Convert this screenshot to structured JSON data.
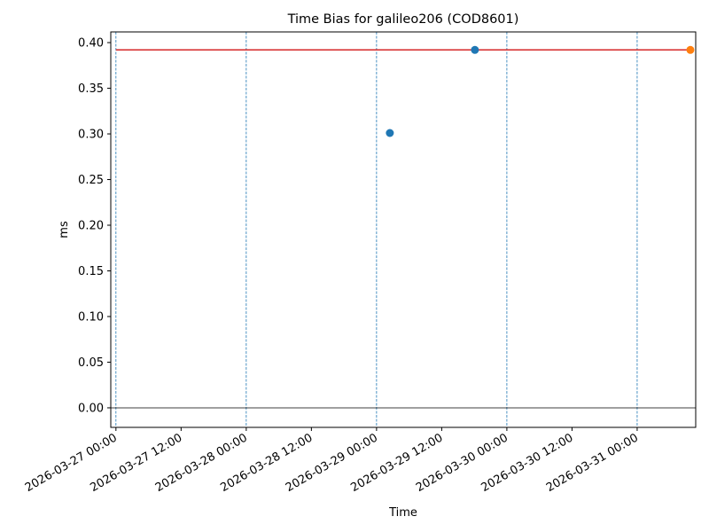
{
  "chart_data": {
    "type": "scatter",
    "title": "Time Bias for galileo206 (COD8601)",
    "x_label": "Time",
    "y_label": "ms",
    "xlim": [
      "2026-03-26 23:03",
      "2026-03-31 10:47"
    ],
    "xticks": [
      "2026-03-27 00:00",
      "2026-03-27 12:00",
      "2026-03-28 00:00",
      "2026-03-28 12:00",
      "2026-03-29 00:00",
      "2026-03-29 12:00",
      "2026-03-30 00:00",
      "2026-03-30 12:00",
      "2026-03-31 00:00"
    ],
    "ylim": [
      -0.0214,
      0.4117
    ],
    "yticks": [
      {
        "value": 0,
        "label": "0.00"
      },
      {
        "value": 0.05,
        "label": "0.05"
      },
      {
        "value": 0.1,
        "label": "0.10"
      },
      {
        "value": 0.15,
        "label": "0.15"
      },
      {
        "value": 0.2,
        "label": "0.20"
      },
      {
        "value": 0.25,
        "label": "0.25"
      },
      {
        "value": 0.3,
        "label": "0.30"
      },
      {
        "value": 0.35,
        "label": "0.35"
      },
      {
        "value": 0.4,
        "label": "0.40"
      }
    ],
    "vlines": [
      "2026-03-27 00:00",
      "2026-03-28 00:00",
      "2026-03-29 00:00",
      "2026-03-30 00:00",
      "2026-03-31 00:00"
    ],
    "vline_color": "#1f77b4",
    "hline": 0,
    "series": [
      {
        "style": "line",
        "color": "#d62728",
        "x": [
          "2026-03-27 00:00",
          "2026-03-31 09:48"
        ],
        "values": [
          0.392,
          0.392
        ]
      },
      {
        "style": "scatter",
        "color": "#1f77b4",
        "x": [
          "2026-03-29 02:27",
          "2026-03-29 18:07"
        ],
        "values": [
          0.301,
          0.392
        ]
      },
      {
        "style": "scatter",
        "color": "#ff7f0e",
        "x": [
          "2026-03-31 09:48"
        ],
        "values": [
          0.392
        ]
      }
    ]
  }
}
